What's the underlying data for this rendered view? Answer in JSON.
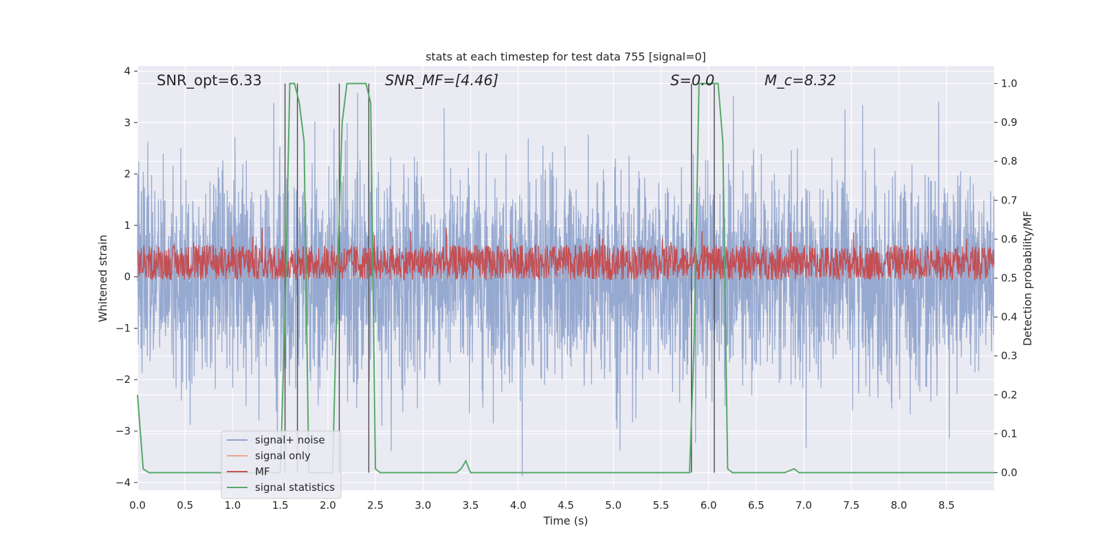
{
  "chart_data": {
    "type": "line",
    "title": "stats at each timestep for test data 755 [signal=0]",
    "xlabel": "Time (s)",
    "ylabel": "Whitened strain",
    "ylabel_right": "Detection probability/MF",
    "xlim": [
      0,
      9
    ],
    "ylim": [
      -4.15,
      4.1
    ],
    "ylim_right": [
      -0.045,
      1.045
    ],
    "x_ticks": [
      0.0,
      0.5,
      1.0,
      1.5,
      2.0,
      2.5,
      3.0,
      3.5,
      4.0,
      4.5,
      5.0,
      5.5,
      6.0,
      6.5,
      7.0,
      7.5,
      8.0,
      8.5
    ],
    "x_tick_labels": [
      "0.0",
      "0.5",
      "1.0",
      "1.5",
      "2.0",
      "2.5",
      "3.0",
      "3.5",
      "4.0",
      "4.5",
      "5.0",
      "5.5",
      "6.0",
      "6.5",
      "7.0",
      "7.5",
      "8.0",
      "8.5"
    ],
    "y_ticks": [
      4,
      3,
      2,
      1,
      0,
      -1,
      -2,
      -3,
      -4
    ],
    "y_tick_labels": [
      "4",
      "3",
      "2",
      "1",
      "0",
      "−1",
      "−2",
      "−3",
      "−4"
    ],
    "y2_ticks": [
      1.0,
      0.9,
      0.8,
      0.7,
      0.6,
      0.5,
      0.4,
      0.3,
      0.2,
      0.1,
      0.0
    ],
    "y2_tick_labels": [
      "1.0",
      "0.9",
      "0.8",
      "0.7",
      "0.6",
      "0.5",
      "0.4",
      "0.3",
      "0.2",
      "0.1",
      "0.0"
    ],
    "annotations": [
      {
        "text": "SNR_opt=6.33",
        "x": 0.2
      },
      {
        "text": "SNR_MF=[4.46]",
        "x": 2.6
      },
      {
        "text": "S=0.0",
        "x": 5.6
      },
      {
        "text": "M_c=8.32",
        "x": 6.6
      }
    ],
    "legend": {
      "placement": "lower-left",
      "entries": [
        "signal+ noise",
        "signal only",
        "MF",
        "signal statistics"
      ]
    },
    "colors": {
      "signal_noise": "#8da2cc",
      "signal_only": "#e8a487",
      "mf": "#c44e52",
      "statistics": "#55a868",
      "markers": "#4a4a4a",
      "background": "#eaeaf2",
      "grid": "#ffffff"
    },
    "series": [
      {
        "name": "signal+ noise",
        "kind": "noise",
        "x_range": [
          0,
          9
        ],
        "mean": 0.0,
        "std": 1.0,
        "envelope_min": -4.0,
        "envelope_max": 3.6
      },
      {
        "name": "signal only",
        "kind": "flat",
        "y": 0
      },
      {
        "name": "MF",
        "kind": "band",
        "x_range": [
          0,
          9
        ],
        "y_right_mean": 0.54,
        "y_right_band": [
          0.505,
          0.595
        ],
        "y_right_max": 0.63
      },
      {
        "name": "signal statistics",
        "axis": "right",
        "x": [
          0.0,
          0.06,
          0.12,
          1.5,
          1.55,
          1.6,
          1.65,
          1.7,
          1.75,
          1.8,
          2.05,
          2.1,
          2.15,
          2.2,
          2.4,
          2.45,
          2.5,
          2.55,
          3.35,
          3.4,
          3.45,
          3.5,
          3.55,
          5.8,
          5.85,
          5.9,
          5.95,
          6.1,
          6.15,
          6.2,
          6.25,
          6.8,
          6.9,
          6.95,
          7.0,
          9.0
        ],
        "y": [
          0.2,
          0.01,
          0.0,
          0.0,
          0.4,
          1.0,
          1.0,
          0.95,
          0.85,
          0.0,
          0.0,
          0.5,
          0.9,
          1.0,
          1.0,
          0.95,
          0.01,
          0.0,
          0.0,
          0.01,
          0.03,
          0.0,
          0.0,
          0.0,
          0.35,
          1.0,
          1.0,
          1.0,
          0.85,
          0.01,
          0.0,
          0.0,
          0.01,
          0.0,
          0.0,
          0.0
        ]
      }
    ],
    "vertical_markers": [
      1.55,
      1.68,
      2.12,
      2.43,
      5.82,
      6.06
    ]
  }
}
